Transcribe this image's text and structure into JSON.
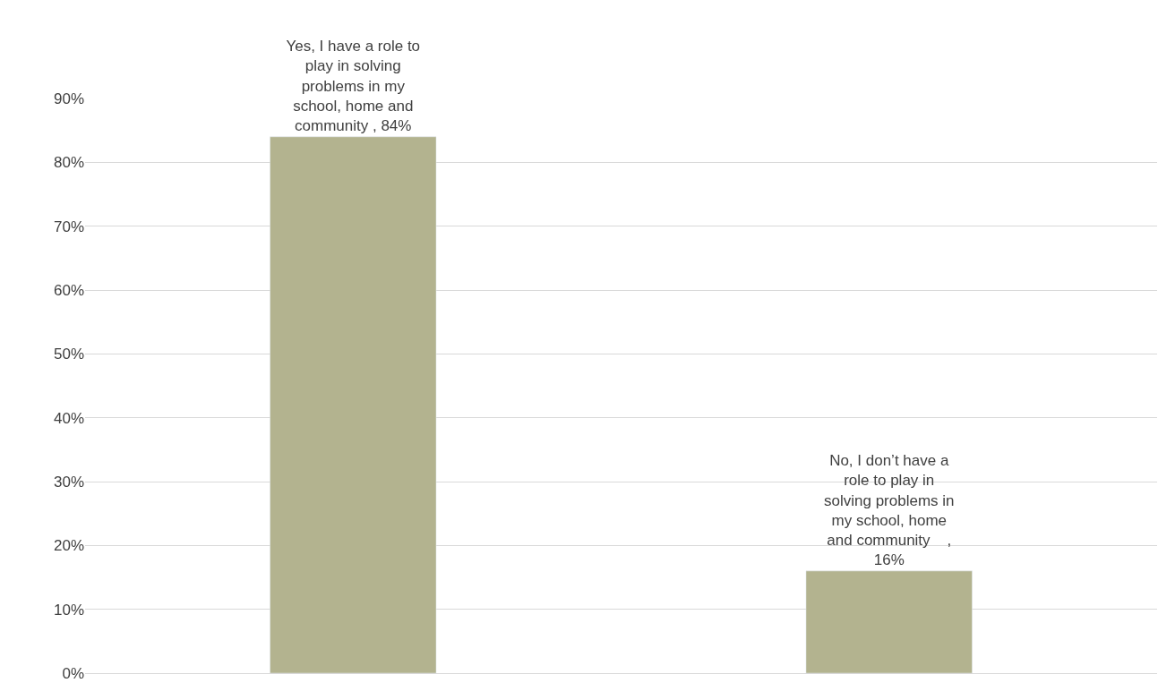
{
  "chart_data": {
    "type": "bar",
    "categories": [
      null,
      null
    ],
    "values": [
      84,
      16
    ],
    "color": "#b3b38f",
    "value_labels": [
      "Yes, I have a role to\nplay in solving\nproblems in my\nschool, home and\ncommunity , 84%",
      "No, I don’t have a\nrole to play in\nsolving problems in\nmy school, home\nand community    ,\n16%"
    ],
    "ylim": [
      0,
      90
    ],
    "yticks": [
      {
        "value": 0,
        "label": "0%"
      },
      {
        "value": 10,
        "label": "10%"
      },
      {
        "value": 20,
        "label": "20%"
      },
      {
        "value": 30,
        "label": "30%"
      },
      {
        "value": 40,
        "label": "40%"
      },
      {
        "value": 50,
        "label": "50%"
      },
      {
        "value": 60,
        "label": "60%"
      },
      {
        "value": 70,
        "label": "70%"
      },
      {
        "value": 80,
        "label": "80%"
      },
      {
        "value": 90,
        "label": "90%"
      }
    ],
    "grid": "y",
    "legend": false
  }
}
